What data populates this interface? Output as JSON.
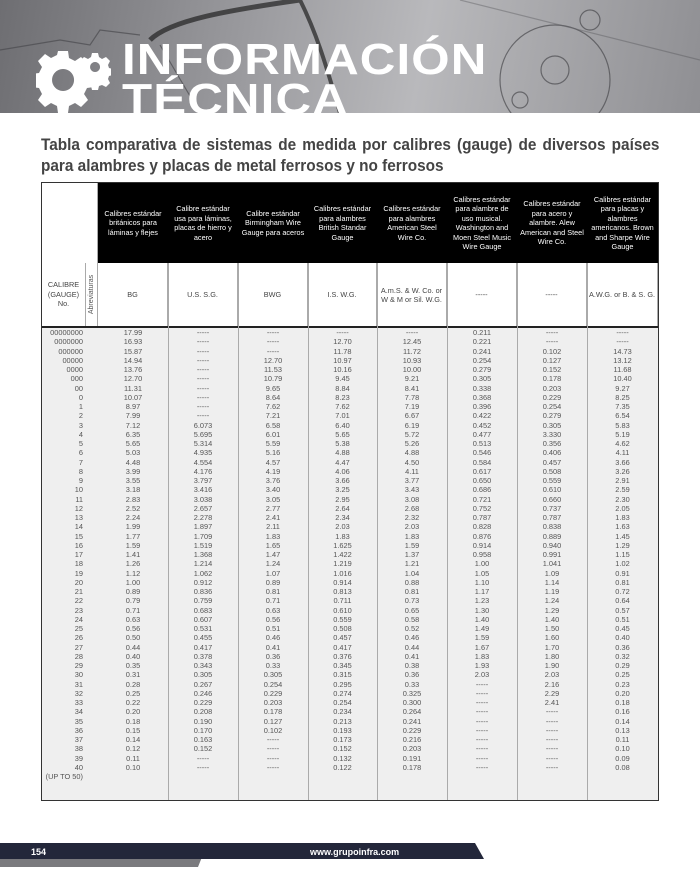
{
  "banner": {
    "title_line1": "INFORMACIÓN",
    "title_line2": "TÉCNICA",
    "icon": "gears-icon"
  },
  "subtitle": "Tabla comparativa de sistemas de medida por calibres (gauge) de diversos países para alambres y placas de metal ferrosos y no ferrosos",
  "table": {
    "gauge_header": "CALIBRE (GAUGE) No.",
    "abbrev_header": "Abreviaturas",
    "columns": [
      {
        "title": "Calibres estándar británicos para láminas y flejes",
        "abbr": "BG"
      },
      {
        "title": "Calibre estándar usa para láminas, placas de hierro y acero",
        "abbr": "U.S. S.G."
      },
      {
        "title": "Calibre estándar Birmingham Wire Gauge para aceros",
        "abbr": "BWG"
      },
      {
        "title": "Calibres estándar para alambres British Standar Gauge",
        "abbr": "I.S. W.G."
      },
      {
        "title": "Calibres estándar para alambres American Steel Wire Co.",
        "abbr": "A.m.S. & W. Co. or W & M or Sil. W.G."
      },
      {
        "title": "Calibres estándar para alambre de uso musical. Washington and Moen Steel Music Wire Gauge",
        "abbr": "-----"
      },
      {
        "title": "Calibres estándar para acero y alambre. Alew American and Steel Wire Co.",
        "abbr": "-----"
      },
      {
        "title": "Calibres estándar para placas y alambres americanos. Brown and Sharpe Wire Gauge",
        "abbr": "A.W.G. or B. & S. G."
      }
    ],
    "rows": [
      [
        "00000000",
        "17.99",
        "-----",
        "-----",
        "-----",
        "-----",
        "0.211",
        "-----",
        "-----"
      ],
      [
        "0000000",
        "16.93",
        "-----",
        "-----",
        "12.70",
        "12.45",
        "0.221",
        "-----",
        "-----"
      ],
      [
        "000000",
        "15.87",
        "-----",
        "-----",
        "11.78",
        "11.72",
        "0.241",
        "0.102",
        "14.73"
      ],
      [
        "00000",
        "14.94",
        "-----",
        "12.70",
        "10.97",
        "10.93",
        "0.254",
        "0.127",
        "13.12"
      ],
      [
        "0000",
        "13.76",
        "-----",
        "11.53",
        "10.16",
        "10.00",
        "0.279",
        "0.152",
        "11.68"
      ],
      [
        "000",
        "12.70",
        "-----",
        "10.79",
        "9.45",
        "9.21",
        "0.305",
        "0.178",
        "10.40"
      ],
      [
        "00",
        "11.31",
        "-----",
        "9.65",
        "8.84",
        "8.41",
        "0.338",
        "0.203",
        "9.27"
      ],
      [
        "0",
        "10.07",
        "-----",
        "8.64",
        "8.23",
        "7.78",
        "0.368",
        "0.229",
        "8.25"
      ],
      [
        "1",
        "8.97",
        "-----",
        "7.62",
        "7.62",
        "7.19",
        "0.396",
        "0.254",
        "7.35"
      ],
      [
        "2",
        "7.99",
        "-----",
        "7.21",
        "7.01",
        "6.67",
        "0.422",
        "0.279",
        "6.54"
      ],
      [
        "3",
        "7.12",
        "6.073",
        "6.58",
        "6.40",
        "6.19",
        "0.452",
        "0.305",
        "5.83"
      ],
      [
        "4",
        "6.35",
        "5.695",
        "6.01",
        "5.65",
        "5.72",
        "0.477",
        "3.330",
        "5.19"
      ],
      [
        "5",
        "5.65",
        "5.314",
        "5.59",
        "5.38",
        "5.26",
        "0.513",
        "0.356",
        "4.62"
      ],
      [
        "6",
        "5.03",
        "4.935",
        "5.16",
        "4.88",
        "4.88",
        "0.546",
        "0.406",
        "4.11"
      ],
      [
        "7",
        "4.48",
        "4.554",
        "4.57",
        "4.47",
        "4.50",
        "0.584",
        "0.457",
        "3.66"
      ],
      [
        "8",
        "3.99",
        "4.176",
        "4.19",
        "4.06",
        "4.11",
        "0.617",
        "0.508",
        "3.26"
      ],
      [
        "9",
        "3.55",
        "3.797",
        "3.76",
        "3.66",
        "3.77",
        "0.650",
        "0.559",
        "2.91"
      ],
      [
        "10",
        "3.18",
        "3.416",
        "3.40",
        "3.25",
        "3.43",
        "0.686",
        "0.610",
        "2.59"
      ],
      [
        "11",
        "2.83",
        "3.038",
        "3.05",
        "2.95",
        "3.08",
        "0.721",
        "0.660",
        "2.30"
      ],
      [
        "12",
        "2.52",
        "2.657",
        "2.77",
        "2.64",
        "2.68",
        "0.752",
        "0.737",
        "2.05"
      ],
      [
        "13",
        "2.24",
        "2.278",
        "2.41",
        "2.34",
        "2.32",
        "0.787",
        "0.787",
        "1.83"
      ],
      [
        "14",
        "1.99",
        "1.897",
        "2.11",
        "2.03",
        "2.03",
        "0.828",
        "0.838",
        "1.63"
      ],
      [
        "15",
        "1.77",
        "1.709",
        "1.83",
        "1.83",
        "1.83",
        "0.876",
        "0.889",
        "1.45"
      ],
      [
        "16",
        "1.59",
        "1.519",
        "1.65",
        "1.625",
        "1.59",
        "0.914",
        "0.940",
        "1.29"
      ],
      [
        "17",
        "1.41",
        "1.368",
        "1.47",
        "1.422",
        "1.37",
        "0.958",
        "0.991",
        "1.15"
      ],
      [
        "18",
        "1.26",
        "1.214",
        "1.24",
        "1.219",
        "1.21",
        "1.00",
        "1.041",
        "1.02"
      ],
      [
        "19",
        "1.12",
        "1.062",
        "1.07",
        "1.016",
        "1.04",
        "1.05",
        "1.09",
        "0.91"
      ],
      [
        "20",
        "1.00",
        "0.912",
        "0.89",
        "0.914",
        "0.88",
        "1.10",
        "1.14",
        "0.81"
      ],
      [
        "21",
        "0.89",
        "0.836",
        "0.81",
        "0.813",
        "0.81",
        "1.17",
        "1.19",
        "0.72"
      ],
      [
        "22",
        "0.79",
        "0.759",
        "0.71",
        "0.711",
        "0.73",
        "1.23",
        "1.24",
        "0.64"
      ],
      [
        "23",
        "0.71",
        "0.683",
        "0.63",
        "0.610",
        "0.65",
        "1.30",
        "1.29",
        "0.57"
      ],
      [
        "24",
        "0.63",
        "0.607",
        "0.56",
        "0.559",
        "0.58",
        "1.40",
        "1.40",
        "0.51"
      ],
      [
        "25",
        "0.56",
        "0.531",
        "0.51",
        "0.508",
        "0.52",
        "1.49",
        "1.50",
        "0.45"
      ],
      [
        "26",
        "0.50",
        "0.455",
        "0.46",
        "0.457",
        "0.46",
        "1.59",
        "1.60",
        "0.40"
      ],
      [
        "27",
        "0.44",
        "0.417",
        "0.41",
        "0.417",
        "0.44",
        "1.67",
        "1.70",
        "0.36"
      ],
      [
        "28",
        "0.40",
        "0.378",
        "0.36",
        "0.376",
        "0.41",
        "1.83",
        "1.80",
        "0.32"
      ],
      [
        "29",
        "0.35",
        "0.343",
        "0.33",
        "0.345",
        "0.38",
        "1.93",
        "1.90",
        "0.29"
      ],
      [
        "30",
        "0.31",
        "0.305",
        "0.305",
        "0.315",
        "0.36",
        "2.03",
        "2.03",
        "0.25"
      ],
      [
        "31",
        "0.28",
        "0.267",
        "0.254",
        "0.295",
        "0.33",
        "-----",
        "2.16",
        "0.23"
      ],
      [
        "32",
        "0.25",
        "0.246",
        "0.229",
        "0.274",
        "0.325",
        "-----",
        "2.29",
        "0.20"
      ],
      [
        "33",
        "0.22",
        "0.229",
        "0.203",
        "0.254",
        "0.300",
        "-----",
        "2.41",
        "0.18"
      ],
      [
        "34",
        "0.20",
        "0.208",
        "0.178",
        "0.234",
        "0.264",
        "-----",
        "-----",
        "0.16"
      ],
      [
        "35",
        "0.18",
        "0.190",
        "0.127",
        "0.213",
        "0.241",
        "-----",
        "-----",
        "0.14"
      ],
      [
        "36",
        "0.15",
        "0.170",
        "0.102",
        "0.193",
        "0.229",
        "-----",
        "-----",
        "0.13"
      ],
      [
        "37",
        "0.14",
        "0.163",
        "-----",
        "0.173",
        "0.216",
        "-----",
        "-----",
        "0.11"
      ],
      [
        "38",
        "0.12",
        "0.152",
        "-----",
        "0.152",
        "0.203",
        "-----",
        "-----",
        "0.10"
      ],
      [
        "39",
        "0.11",
        "-----",
        "-----",
        "0.132",
        "0.191",
        "-----",
        "-----",
        "0.09"
      ],
      [
        "40",
        "0.10",
        "-----",
        "-----",
        "0.122",
        "0.178",
        "-----",
        "-----",
        "0.08"
      ],
      [
        "(UP TO 50)",
        "",
        "",
        "",
        "",
        "",
        "",
        "",
        ""
      ]
    ]
  },
  "footer": {
    "page_number": "154",
    "url": "www.grupoinfra.com",
    "color_band": "#23273a",
    "color_strip": "#7a7a7e"
  }
}
